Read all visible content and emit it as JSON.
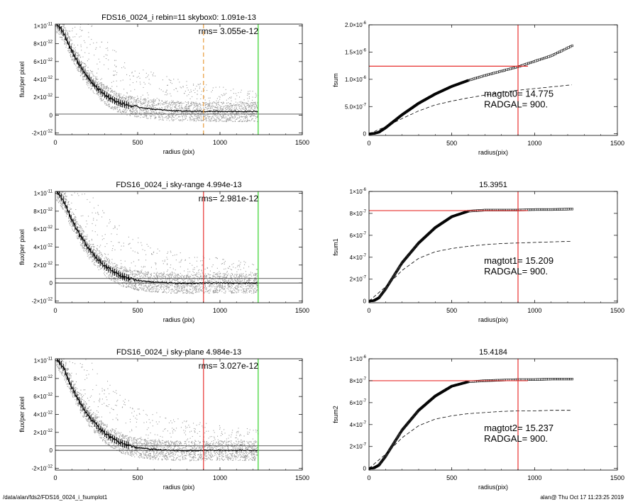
{
  "footer": {
    "path": "/data/alan/fds2/FDS16_0024_i_fsumplot1",
    "stamp": "alan@  Thu Oct 17 11:23:25 2019"
  },
  "colors": {
    "points": "#9e9e9e",
    "profile": "#000000",
    "red_line": "#e8312f",
    "green_line": "#35d12a",
    "orange_line": "#e89a3a"
  },
  "chart_data": [
    {
      "id": "flux-1",
      "type": "scatter",
      "title": "FDS16_0024_i rebin=11    skybox0:  1.091e-13",
      "annotation": "rms= 3.055e-12",
      "xlabel": "radius (pix)",
      "ylabel": "flux/per pixel",
      "xlim": [
        0,
        1500
      ],
      "ylim": [
        -2.2e-12,
        1.02e-11
      ],
      "xticks": [
        0,
        500,
        1000,
        1500
      ],
      "xtick_labels": [
        "0",
        "500",
        "1000",
        "1500"
      ],
      "yticks": [
        -2e-12,
        0,
        2e-12,
        4e-12,
        6e-12,
        8e-12,
        1e-11
      ],
      "ytick_labels": [
        [
          "-2×10",
          "-12"
        ],
        [
          "0",
          ""
        ],
        [
          "2×10",
          "-12"
        ],
        [
          "4×10",
          "-12"
        ],
        [
          "6×10",
          "-12"
        ],
        [
          "8×10",
          "-12"
        ],
        [
          "1×10",
          "-11"
        ]
      ],
      "profile_x": [
        0,
        50,
        100,
        150,
        200,
        250,
        300,
        350,
        400,
        450,
        500,
        600,
        700,
        800,
        900,
        1000,
        1100,
        1230
      ],
      "profile_y": [
        1.05e-11,
        9.2e-12,
        7.2e-12,
        5.5e-12,
        4.2e-12,
        3.1e-12,
        2.3e-12,
        1.7e-12,
        1.3e-12,
        1.05e-12,
        9e-13,
        6.5e-13,
        5e-13,
        4.5e-13,
        4e-13,
        4e-13,
        4e-13,
        4e-13
      ],
      "sky_levels": [
        1.091e-13
      ],
      "vlines": [
        {
          "x": 900,
          "color": "orange",
          "dashed": true
        },
        {
          "x": 1232,
          "color": "green",
          "dashed": false
        }
      ],
      "scatter_envelope": {
        "base": 1.2e-12,
        "extra": 6.5e-12,
        "decay": 550
      }
    },
    {
      "id": "fsum-0",
      "type": "line",
      "title": "",
      "xlabel": "radius(pix)",
      "ylabel": "fsum",
      "xlim": [
        0,
        1500
      ],
      "ylim": [
        -3e-08,
        2e-06
      ],
      "xticks": [
        0,
        500,
        1000,
        1500
      ],
      "xtick_labels": [
        "0",
        "500",
        "1000",
        "1500"
      ],
      "yticks": [
        0,
        5e-07,
        1e-06,
        1.5e-06,
        2e-06
      ],
      "ytick_labels": [
        [
          "0",
          ""
        ],
        [
          "5.0×10",
          "-7"
        ],
        [
          "1.0×10",
          "-6"
        ],
        [
          "1.5×10",
          "-6"
        ],
        [
          "2.0×10",
          "-6"
        ]
      ],
      "sum_x": [
        0,
        30,
        60,
        100,
        150,
        200,
        300,
        400,
        500,
        600,
        700,
        800,
        900,
        1000,
        1100,
        1230
      ],
      "sum_y": [
        0,
        5e-09,
        3e-08,
        1.1e-07,
        2.3e-07,
        3.5e-07,
        5.6e-07,
        7.3e-07,
        8.7e-07,
        9.8e-07,
        1.07e-06,
        1.15e-06,
        1.23e-06,
        1.33e-06,
        1.43e-06,
        1.62e-06
      ],
      "model_x": [
        0,
        100,
        200,
        300,
        400,
        500,
        600,
        700,
        800,
        900,
        1000,
        1100,
        1230
      ],
      "model_y": [
        0,
        1.3e-07,
        2.8e-07,
        4.2e-07,
        5.3e-07,
        6e-07,
        6.6e-07,
        7.1e-07,
        7.6e-07,
        8e-07,
        8.3e-07,
        8.6e-07,
        9e-07
      ],
      "hline": 1.24e-06,
      "vline": 900,
      "annotations": [
        "magtot0=  14.775",
        "RADGAL=    900."
      ]
    },
    {
      "id": "flux-2",
      "type": "scatter",
      "title": "FDS16_0024_i sky-range  4.994e-13",
      "annotation": "rms= 2.981e-12",
      "xlabel": "radius (pix)",
      "ylabel": "flux/per pixel",
      "xlim": [
        0,
        1500
      ],
      "ylim": [
        -2.2e-12,
        1.02e-11
      ],
      "xticks": [
        0,
        500,
        1000,
        1500
      ],
      "xtick_labels": [
        "0",
        "500",
        "1000",
        "1500"
      ],
      "yticks": [
        -2e-12,
        0,
        2e-12,
        4e-12,
        6e-12,
        8e-12,
        1e-11
      ],
      "ytick_labels": [
        [
          "-2×10",
          "-12"
        ],
        [
          "0",
          ""
        ],
        [
          "2×10",
          "-12"
        ],
        [
          "4×10",
          "-12"
        ],
        [
          "6×10",
          "-12"
        ],
        [
          "8×10",
          "-12"
        ],
        [
          "1×10",
          "-11"
        ]
      ],
      "profile_x": [
        0,
        50,
        100,
        150,
        200,
        250,
        300,
        350,
        400,
        450,
        500,
        600,
        700,
        800,
        900,
        1000,
        1100,
        1230
      ],
      "profile_y": [
        1.05e-11,
        9.2e-12,
        7e-12,
        5.3e-12,
        3.9e-12,
        2.8e-12,
        1.9e-12,
        1.3e-12,
        8e-13,
        5e-13,
        3e-13,
        1e-13,
        0,
        -5e-14,
        0,
        0,
        0,
        0
      ],
      "sky_levels": [
        0,
        4.994e-13
      ],
      "vlines": [
        {
          "x": 900,
          "color": "red",
          "dashed": false
        },
        {
          "x": 1232,
          "color": "green",
          "dashed": false
        }
      ],
      "scatter_envelope": {
        "base": 1.2e-12,
        "extra": 6.5e-12,
        "decay": 550
      }
    },
    {
      "id": "fsum-1",
      "type": "line",
      "title": "15.3951",
      "xlabel": "radius(pix)",
      "ylabel": "fsum1",
      "xlim": [
        0,
        1500
      ],
      "ylim": [
        -1.5e-08,
        1e-06
      ],
      "xticks": [
        0,
        500,
        1000,
        1500
      ],
      "xtick_labels": [
        "0",
        "500",
        "1000",
        "1500"
      ],
      "yticks": [
        0,
        2e-07,
        4e-07,
        6e-07,
        8e-07,
        1e-06
      ],
      "ytick_labels": [
        [
          "0",
          ""
        ],
        [
          "2×10",
          "-7"
        ],
        [
          "4×10",
          "-7"
        ],
        [
          "6×10",
          "-7"
        ],
        [
          "8×10",
          "-7"
        ],
        [
          "1×10",
          "-6"
        ]
      ],
      "sum_x": [
        0,
        30,
        60,
        100,
        150,
        200,
        300,
        400,
        500,
        600,
        700,
        800,
        900,
        1000,
        1100,
        1230
      ],
      "sum_y": [
        0,
        5e-09,
        3e-08,
        1.1e-07,
        2.3e-07,
        3.5e-07,
        5.3e-07,
        6.7e-07,
        7.7e-07,
        8.2e-07,
        8.3e-07,
        8.3e-07,
        8.3e-07,
        8.35e-07,
        8.35e-07,
        8.4e-07
      ],
      "model_x": [
        0,
        100,
        200,
        300,
        400,
        500,
        600,
        700,
        800,
        900,
        1000,
        1100,
        1230
      ],
      "model_y": [
        0,
        1.3e-07,
        2.8e-07,
        3.9e-07,
        4.5e-07,
        4.8e-07,
        5e-07,
        5.15e-07,
        5.25e-07,
        5.3e-07,
        5.35e-07,
        5.4e-07,
        5.45e-07
      ],
      "hline": 8.25e-07,
      "vline": 900,
      "annotations": [
        "magtot1=  15.209",
        "RADGAL=    900."
      ]
    },
    {
      "id": "flux-3",
      "type": "scatter",
      "title": "FDS16_0024_i sky-plane  4.984e-13",
      "annotation": "rms= 3.027e-12",
      "xlabel": "radius (pix)",
      "ylabel": "flux/per pixel",
      "xlim": [
        0,
        1500
      ],
      "ylim": [
        -2.2e-12,
        1.02e-11
      ],
      "xticks": [
        0,
        500,
        1000,
        1500
      ],
      "xtick_labels": [
        "0",
        "500",
        "1000",
        "1500"
      ],
      "yticks": [
        -2e-12,
        0,
        2e-12,
        4e-12,
        6e-12,
        8e-12,
        1e-11
      ],
      "ytick_labels": [
        [
          "-2×10",
          "-12"
        ],
        [
          "0",
          ""
        ],
        [
          "2×10",
          "-12"
        ],
        [
          "4×10",
          "-12"
        ],
        [
          "6×10",
          "-12"
        ],
        [
          "8×10",
          "-12"
        ],
        [
          "1×10",
          "-11"
        ]
      ],
      "profile_x": [
        0,
        50,
        100,
        150,
        200,
        250,
        300,
        350,
        400,
        450,
        500,
        600,
        700,
        800,
        900,
        1000,
        1100,
        1230
      ],
      "profile_y": [
        1.05e-11,
        9.2e-12,
        7e-12,
        5.3e-12,
        3.9e-12,
        2.8e-12,
        1.9e-12,
        1.3e-12,
        8e-13,
        5e-13,
        3e-13,
        1e-13,
        0,
        -5e-14,
        0,
        0,
        0,
        0
      ],
      "sky_levels": [
        0,
        4.984e-13
      ],
      "vlines": [
        {
          "x": 900,
          "color": "red",
          "dashed": false
        },
        {
          "x": 1232,
          "color": "green",
          "dashed": false
        }
      ],
      "scatter_envelope": {
        "base": 1.2e-12,
        "extra": 6.5e-12,
        "decay": 550
      }
    },
    {
      "id": "fsum-2",
      "type": "line",
      "title": "15.4184",
      "xlabel": "radius(pix)",
      "ylabel": "fsum2",
      "xlim": [
        0,
        1500
      ],
      "ylim": [
        -1.5e-08,
        1e-06
      ],
      "xticks": [
        0,
        500,
        1000,
        1500
      ],
      "xtick_labels": [
        "0",
        "500",
        "1000",
        "1500"
      ],
      "yticks": [
        0,
        2e-07,
        4e-07,
        6e-07,
        8e-07,
        1e-06
      ],
      "ytick_labels": [
        [
          "0",
          ""
        ],
        [
          "2×10",
          "-7"
        ],
        [
          "4×10",
          "-7"
        ],
        [
          "6×10",
          "-7"
        ],
        [
          "8×10",
          "-7"
        ],
        [
          "1×10",
          "-6"
        ]
      ],
      "sum_x": [
        0,
        30,
        60,
        100,
        150,
        200,
        300,
        400,
        500,
        600,
        700,
        800,
        900,
        1000,
        1100,
        1230
      ],
      "sum_y": [
        0,
        5e-09,
        3e-08,
        1.1e-07,
        2.3e-07,
        3.5e-07,
        5.3e-07,
        6.6e-07,
        7.5e-07,
        7.9e-07,
        8e-07,
        8.05e-07,
        8.1e-07,
        8.1e-07,
        8.15e-07,
        8.15e-07
      ],
      "model_x": [
        0,
        100,
        200,
        300,
        400,
        500,
        600,
        700,
        800,
        900,
        1000,
        1100,
        1230
      ],
      "model_y": [
        0,
        1.3e-07,
        2.8e-07,
        3.9e-07,
        4.5e-07,
        4.8e-07,
        5e-07,
        5.1e-07,
        5.2e-07,
        5.25e-07,
        5.25e-07,
        5.3e-07,
        5.3e-07
      ],
      "hline": 8e-07,
      "vline": 900,
      "annotations": [
        "magtot2=  15.237",
        "RADGAL=    900."
      ]
    }
  ]
}
